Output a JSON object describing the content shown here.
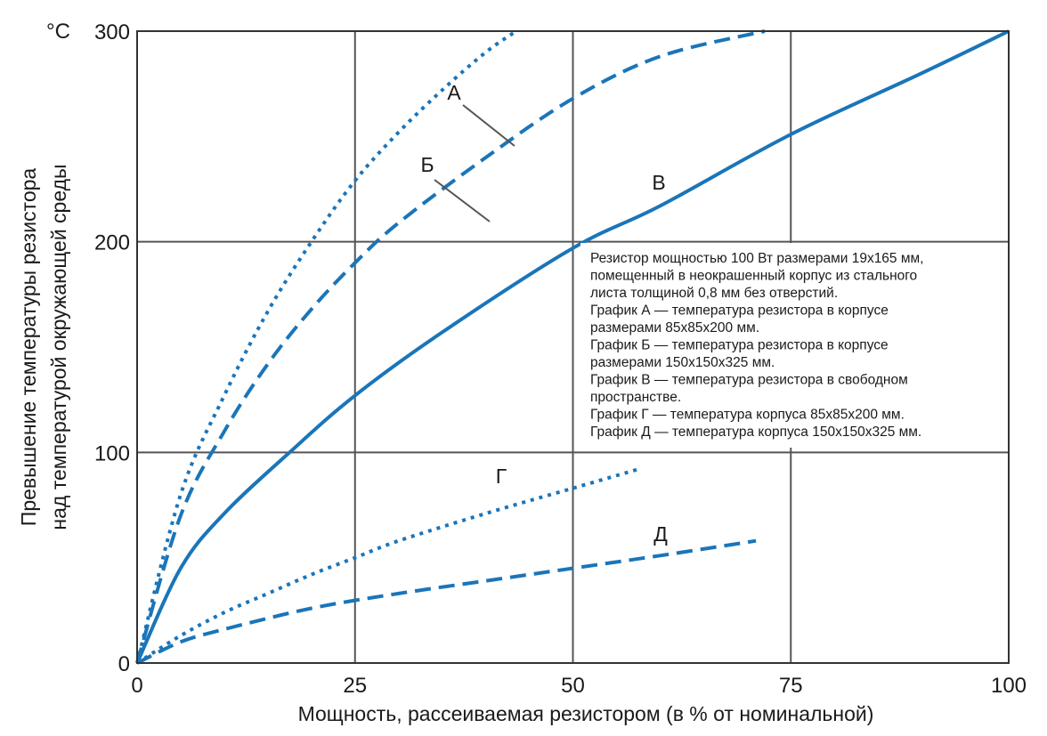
{
  "chart_data": {
    "type": "line",
    "unit_label": "°C",
    "xlabel": "Мощность, рассеиваемая резистором (в % от номинальной)",
    "ylabel_lines": [
      "Превышение температуры резистора",
      "над температурой окружающей среды"
    ],
    "xlim": [
      0,
      100
    ],
    "ylim": [
      0,
      300
    ],
    "xticks": [
      0,
      25,
      50,
      75,
      100
    ],
    "yticks": [
      0,
      100,
      200,
      300
    ],
    "grid": true,
    "color": "#1a75b9",
    "series": [
      {
        "name": "А",
        "style": "dotted",
        "x": [
          0,
          5,
          10,
          15,
          20,
          25,
          30,
          35,
          40,
          43.5
        ],
        "y": [
          0,
          80,
          127,
          167,
          200,
          229,
          252,
          272,
          290,
          300
        ]
      },
      {
        "name": "Б",
        "style": "dashed",
        "x": [
          0,
          5,
          10,
          15,
          20,
          25,
          30,
          40,
          50,
          60,
          72
        ],
        "y": [
          0,
          70,
          110,
          142,
          168,
          190,
          209,
          240,
          268,
          288,
          300
        ]
      },
      {
        "name": "В",
        "style": "solid",
        "x": [
          0,
          5,
          10,
          17.5,
          25,
          35,
          50,
          60,
          75,
          90,
          100
        ],
        "y": [
          0,
          45,
          71,
          100,
          127,
          157,
          197,
          217,
          251,
          280,
          300
        ]
      },
      {
        "name": "Г",
        "style": "dotted",
        "x": [
          0,
          5,
          10,
          15,
          20,
          25,
          30,
          40,
          50,
          57.5
        ],
        "y": [
          0,
          13,
          24,
          33,
          42,
          50,
          58,
          71,
          83,
          92
        ]
      },
      {
        "name": "Д",
        "style": "dashed",
        "x": [
          0,
          5,
          10,
          20,
          30,
          40,
          50,
          60,
          71
        ],
        "y": [
          0,
          10,
          16,
          26,
          33,
          39,
          45,
          51,
          58
        ]
      }
    ],
    "annotation_lines": [
      "Резистор мощностью 100 Вт размерами 19x165 мм,",
      "помещенный в неокрашенный корпус из стального",
      "листа толщиной 0,8 мм без отверстий.",
      "График А — температура резистора в корпусе",
      "размерами 85x85x200 мм.",
      "График Б — температура резистора в корпусе",
      "размерами 150x150x325 мм.",
      "График В — температура резистора в свободном",
      "пространстве.",
      "График Г — температура корпуса 85x85x200 мм.",
      "График Д — температура корпуса 150x150x325 мм."
    ]
  }
}
